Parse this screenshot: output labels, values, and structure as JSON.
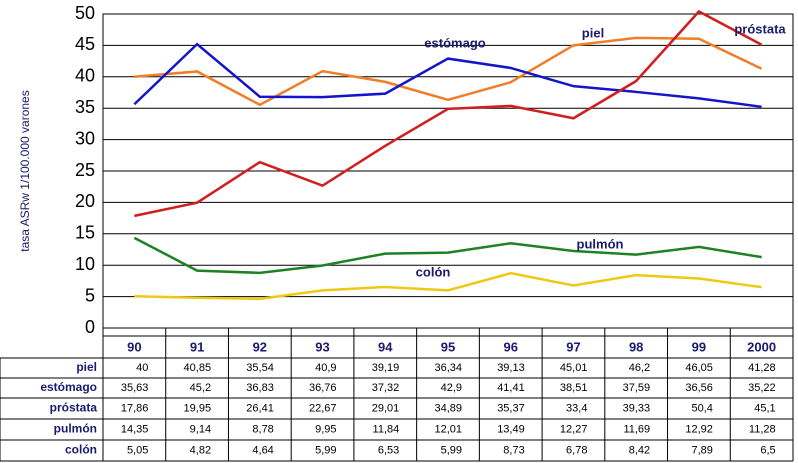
{
  "chart_data": {
    "type": "line",
    "y_axis_label": "tasa ASRw 1/100.000 varones",
    "categories": [
      "90",
      "91",
      "92",
      "93",
      "94",
      "95",
      "96",
      "97",
      "98",
      "99",
      "2000"
    ],
    "ylim": [
      0,
      50
    ],
    "yticks": [
      0,
      5,
      10,
      15,
      20,
      25,
      30,
      35,
      40,
      45,
      50
    ],
    "grid": true,
    "series": [
      {
        "name": "piel",
        "color": "#f07d28",
        "values": [
          40,
          40.85,
          35.54,
          40.9,
          39.19,
          36.34,
          39.13,
          45.01,
          46.2,
          46.05,
          41.28
        ],
        "value_labels": [
          "40",
          "40,85",
          "35,54",
          "40,9",
          "39,19",
          "36,34",
          "39,13",
          "45,01",
          "46,2",
          "46,05",
          "41,28"
        ]
      },
      {
        "name": "estómago",
        "color": "#1414c8",
        "values": [
          35.63,
          45.2,
          36.83,
          36.76,
          37.32,
          42.9,
          41.41,
          38.51,
          37.59,
          36.56,
          35.22
        ],
        "value_labels": [
          "35,63",
          "45,2",
          "36,83",
          "36,76",
          "37,32",
          "42,9",
          "41,41",
          "38,51",
          "37,59",
          "36,56",
          "35,22"
        ]
      },
      {
        "name": "próstata",
        "color": "#d21e1e",
        "values": [
          17.86,
          19.95,
          26.41,
          22.67,
          29.01,
          34.89,
          35.37,
          33.4,
          39.33,
          50.4,
          45.1
        ],
        "value_labels": [
          "17,86",
          "19,95",
          "26,41",
          "22,67",
          "29,01",
          "34,89",
          "35,37",
          "33,4",
          "39,33",
          "50,4",
          "45,1"
        ]
      },
      {
        "name": "pulmón",
        "color": "#1e8224",
        "values": [
          14.35,
          9.14,
          8.78,
          9.95,
          11.84,
          12.01,
          13.49,
          12.27,
          11.69,
          12.92,
          11.28
        ],
        "value_labels": [
          "14,35",
          "9,14",
          "8,78",
          "9,95",
          "11,84",
          "12,01",
          "13,49",
          "12,27",
          "11,69",
          "12,92",
          "11,28"
        ]
      },
      {
        "name": "colón",
        "color": "#f0c814",
        "values": [
          5.05,
          4.82,
          4.64,
          5.99,
          6.53,
          5.99,
          8.73,
          6.78,
          8.42,
          7.89,
          6.5
        ],
        "value_labels": [
          "5,05",
          "4,82",
          "4,64",
          "5,99",
          "6,53",
          "5,99",
          "8,73",
          "6,78",
          "8,42",
          "7,89",
          "6,5"
        ]
      }
    ]
  }
}
